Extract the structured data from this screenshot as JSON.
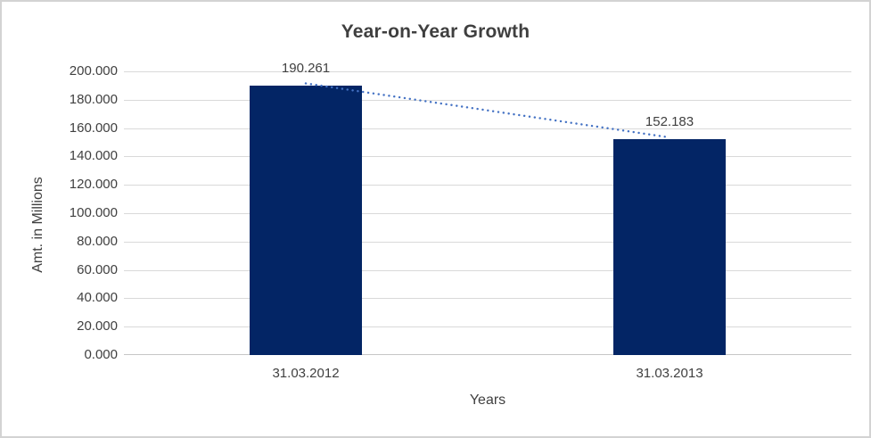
{
  "chart": {
    "colors": {
      "bar": "#032565",
      "trendline": "#4472c4",
      "gridline": "#d9d9d9",
      "axis_line": "#c6c6c6",
      "text": "#404040",
      "frame_border": "#d3d3d3",
      "background": "#ffffff"
    }
  },
  "chart_data": {
    "type": "bar",
    "title": "Year-on-Year Growth",
    "xlabel": "Years",
    "ylabel": "Amt. in Millions",
    "categories": [
      "31.03.2012",
      "31.03.2013"
    ],
    "values": [
      190.261,
      152.183
    ],
    "data_labels": [
      "190.261",
      "152.183"
    ],
    "ylim": [
      0,
      200
    ],
    "ytick_step": 20,
    "ytick_labels": [
      "0.000",
      "20.000",
      "40.000",
      "60.000",
      "80.000",
      "100.000",
      "120.000",
      "140.000",
      "160.000",
      "180.000",
      "200.000"
    ],
    "grid": true,
    "legend": false,
    "trendline": {
      "type": "linear",
      "style": "dotted",
      "start_value": 190.261,
      "end_value": 152.183
    }
  }
}
